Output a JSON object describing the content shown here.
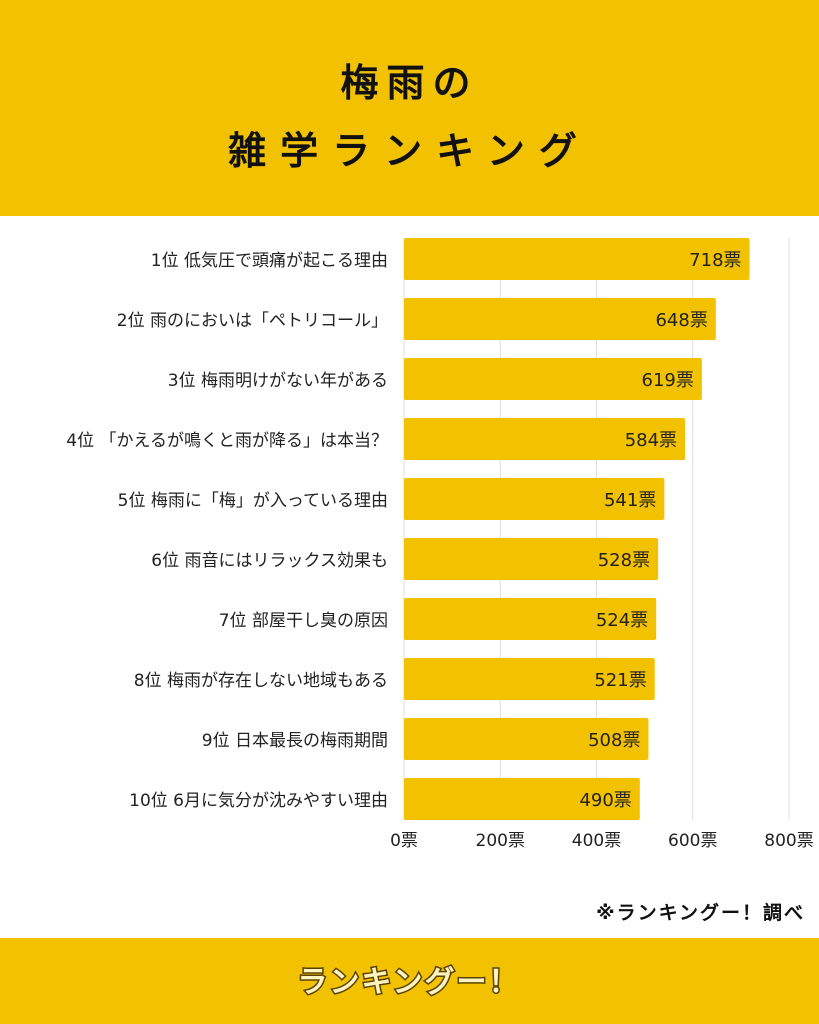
{
  "header": {
    "title_line1": "梅雨の",
    "title_line2": "雑学ランキング"
  },
  "source": "※ランキングー！調べ",
  "logo_text": "ランキングー！",
  "colors": {
    "background": "#F2C200",
    "bar": "#F2C200",
    "panel": "#FFFFFF",
    "grid": "#DDDDDD",
    "text": "#222222"
  },
  "chart_data": {
    "type": "bar",
    "orientation": "horizontal",
    "categories": [
      "1位 低気圧で頭痛が起こる理由",
      "2位 雨のにおいは「ペトリコール」",
      "3位 梅雨明けがない年がある",
      "4位 「かえるが鳴くと雨が降る」は本当？",
      "5位 梅雨に「梅」が入っている理由",
      "6位 雨音にはリラックス効果も",
      "7位 部屋干し臭の原因",
      "8位 梅雨が存在しない地域もある",
      "9位 日本最長の梅雨期間",
      "10位 6月に気分が沈みやすい理由"
    ],
    "values": [
      718,
      648,
      619,
      584,
      541,
      528,
      524,
      521,
      508,
      490
    ],
    "value_labels": [
      "718票",
      "648票",
      "619票",
      "584票",
      "541票",
      "528票",
      "524票",
      "521票",
      "508票",
      "490票"
    ],
    "xlim": [
      0,
      800
    ],
    "x_ticks": [
      0,
      200,
      400,
      600,
      800
    ],
    "x_tick_labels": [
      "0票",
      "200票",
      "400票",
      "600票",
      "800票"
    ],
    "grid": true
  }
}
